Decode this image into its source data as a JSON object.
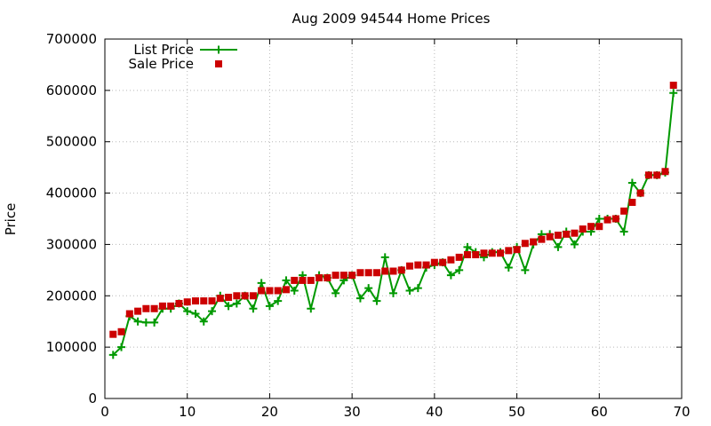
{
  "chart_data": {
    "type": "line",
    "title": "Aug 2009 94544 Home Prices",
    "xlabel": "",
    "ylabel": "Price",
    "xlim": [
      0,
      70
    ],
    "ylim": [
      0,
      700000
    ],
    "x_ticks": [
      0,
      10,
      20,
      30,
      40,
      50,
      60,
      70
    ],
    "y_ticks": [
      0,
      100000,
      200000,
      300000,
      400000,
      500000,
      600000,
      700000
    ],
    "x_tick_labels": [
      "0",
      "10",
      "20",
      "30",
      "40",
      "50",
      "60",
      "70"
    ],
    "y_tick_labels": [
      "0",
      "100000",
      "200000",
      "300000",
      "400000",
      "500000",
      "600000",
      "700000"
    ],
    "grid": true,
    "legend_position": "top-left",
    "series": [
      {
        "name": "List Price",
        "style": "lines+crosses",
        "color": "#009900",
        "x": [
          1,
          2,
          3,
          4,
          5,
          6,
          7,
          8,
          9,
          10,
          11,
          12,
          13,
          14,
          15,
          16,
          17,
          18,
          19,
          20,
          21,
          22,
          23,
          24,
          25,
          26,
          27,
          28,
          29,
          30,
          31,
          32,
          33,
          34,
          35,
          36,
          37,
          38,
          39,
          40,
          41,
          42,
          43,
          44,
          45,
          46,
          47,
          48,
          49,
          50,
          51,
          52,
          53,
          54,
          55,
          56,
          57,
          58,
          59,
          60,
          61,
          62,
          63,
          64,
          65,
          66,
          67,
          68,
          69
        ],
        "values": [
          85000,
          100000,
          160000,
          150000,
          148000,
          148000,
          175000,
          175000,
          185000,
          170000,
          165000,
          150000,
          170000,
          200000,
          180000,
          185000,
          200000,
          175000,
          225000,
          180000,
          190000,
          230000,
          210000,
          240000,
          175000,
          240000,
          235000,
          205000,
          230000,
          240000,
          195000,
          215000,
          190000,
          275000,
          205000,
          250000,
          210000,
          215000,
          255000,
          260000,
          265000,
          240000,
          250000,
          295000,
          285000,
          275000,
          285000,
          285000,
          255000,
          295000,
          250000,
          300000,
          320000,
          320000,
          295000,
          325000,
          300000,
          325000,
          325000,
          350000,
          350000,
          350000,
          325000,
          420000,
          400000,
          435000,
          435000,
          440000,
          595000
        ]
      },
      {
        "name": "Sale Price",
        "style": "points",
        "color": "#cc0000",
        "x": [
          1,
          2,
          3,
          4,
          5,
          6,
          7,
          8,
          9,
          10,
          11,
          12,
          13,
          14,
          15,
          16,
          17,
          18,
          19,
          20,
          21,
          22,
          23,
          24,
          25,
          26,
          27,
          28,
          29,
          30,
          31,
          32,
          33,
          34,
          35,
          36,
          37,
          38,
          39,
          40,
          41,
          42,
          43,
          44,
          45,
          46,
          47,
          48,
          49,
          50,
          51,
          52,
          53,
          54,
          55,
          56,
          57,
          58,
          59,
          60,
          61,
          62,
          63,
          64,
          65,
          66,
          67,
          68,
          69
        ],
        "values": [
          125000,
          130000,
          165000,
          170000,
          175000,
          175000,
          180000,
          180000,
          185000,
          188000,
          190000,
          190000,
          190000,
          195000,
          197000,
          200000,
          200000,
          200000,
          210000,
          210000,
          210000,
          212000,
          230000,
          230000,
          230000,
          235000,
          235000,
          240000,
          240000,
          240000,
          245000,
          245000,
          245000,
          248000,
          248000,
          250000,
          258000,
          260000,
          260000,
          265000,
          265000,
          270000,
          275000,
          280000,
          280000,
          283000,
          283000,
          283000,
          288000,
          290000,
          302000,
          305000,
          310000,
          315000,
          318000,
          320000,
          322000,
          330000,
          335000,
          335000,
          348000,
          350000,
          365000,
          382000,
          400000,
          435000,
          435000,
          442000,
          610000
        ]
      }
    ]
  }
}
